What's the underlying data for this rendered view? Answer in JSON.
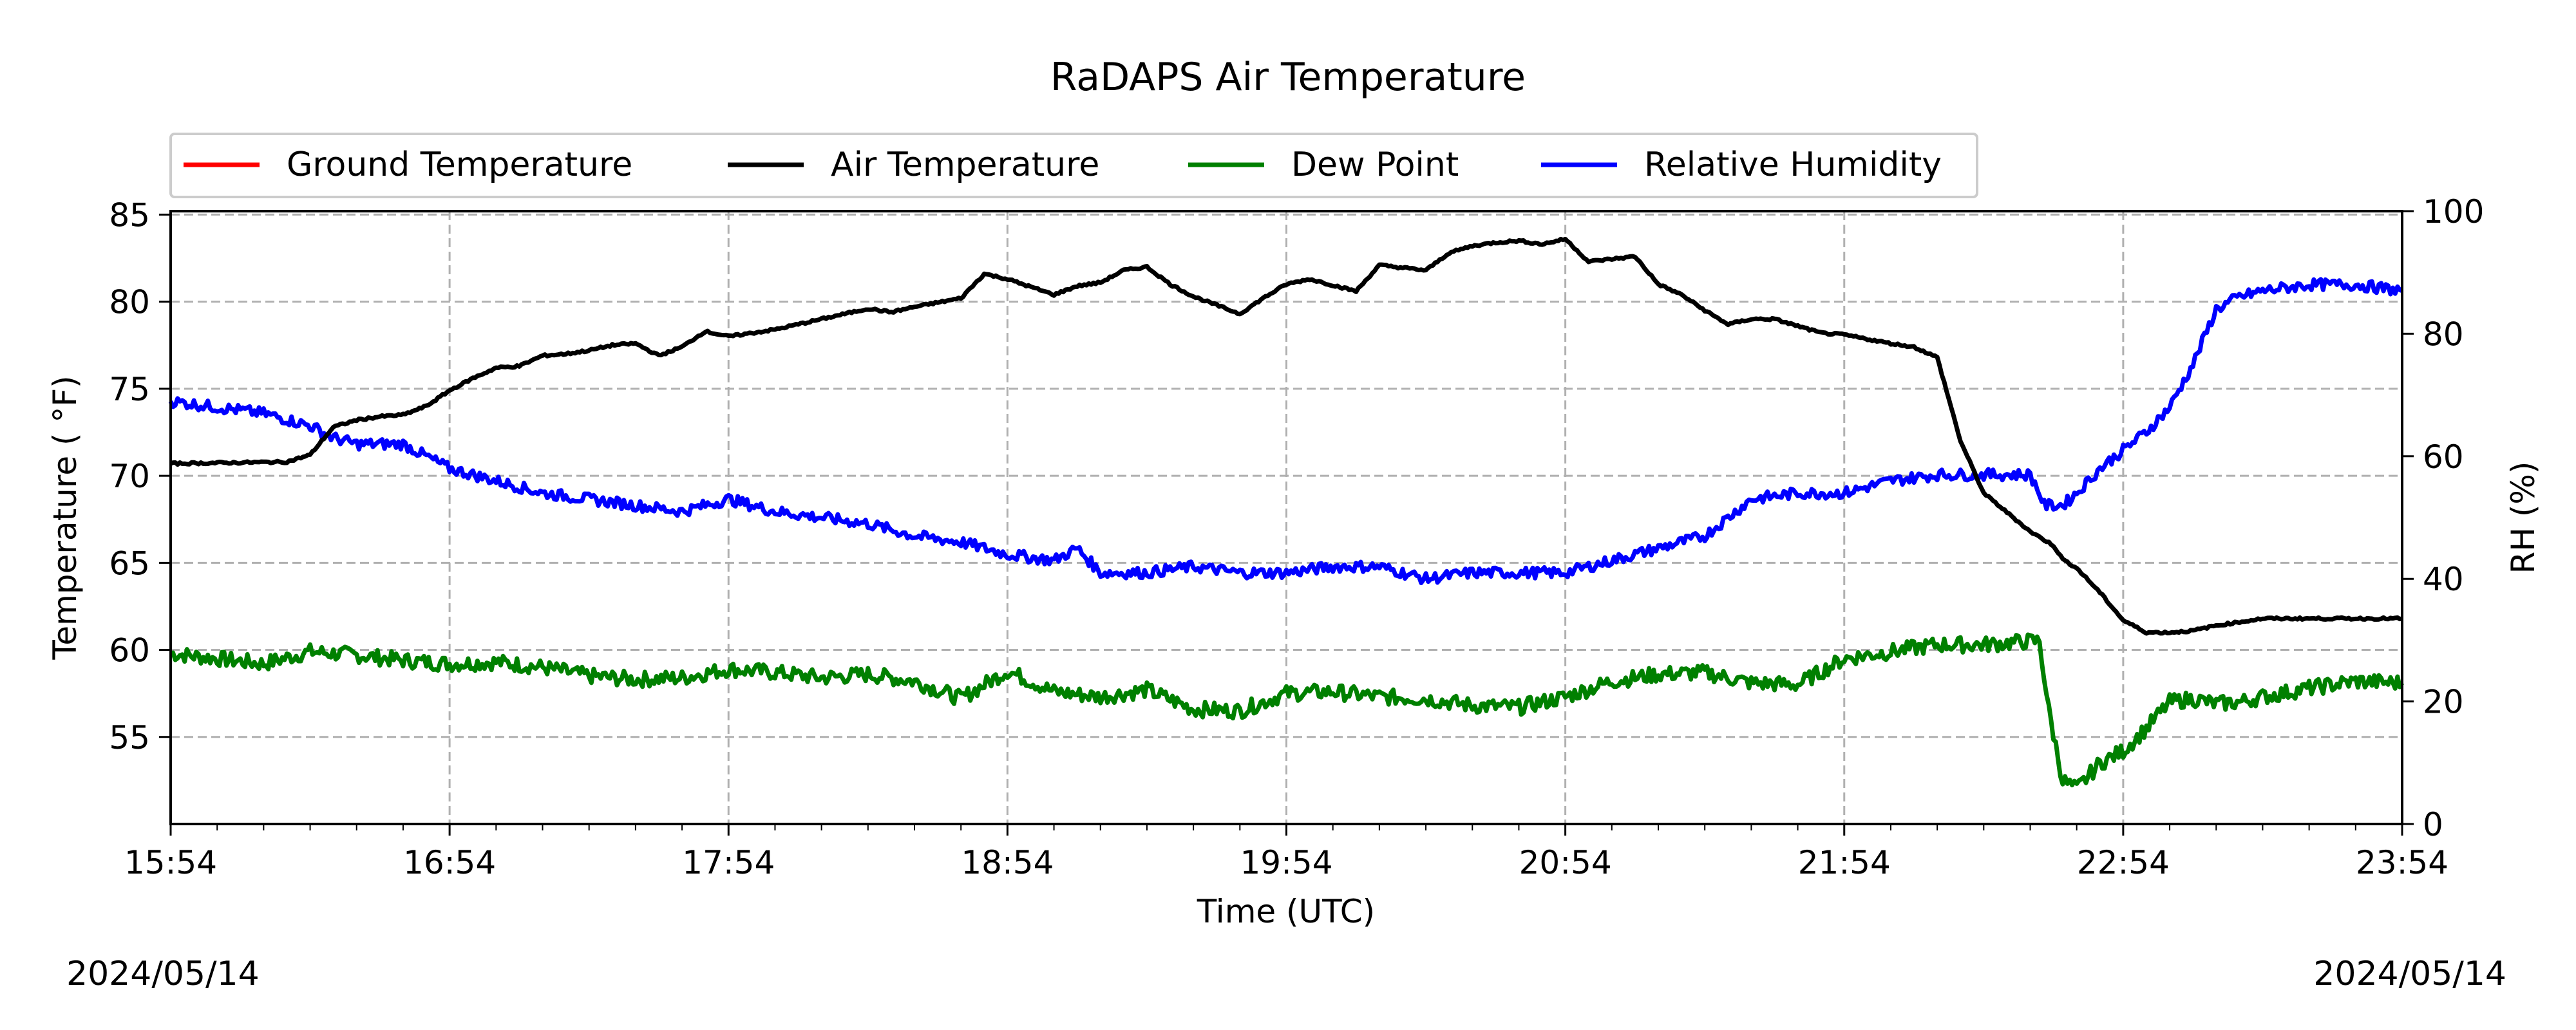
{
  "chart_data": {
    "type": "line",
    "title": "RaDAPS Air Temperature",
    "xlabel": "Time (UTC)",
    "ylabel_left": "Temperature ( $^\\circ$F)",
    "ylabel_right": "RH (%)",
    "date_left": "2024/05/14",
    "date_right": "2024/05/14",
    "x_ticks": [
      "15:54",
      "16:54",
      "17:54",
      "18:54",
      "19:54",
      "20:54",
      "21:54",
      "22:54",
      "23:54"
    ],
    "xlim": [
      "15:54",
      "23:54"
    ],
    "y_left_ticks": [
      55,
      60,
      65,
      70,
      75,
      80,
      85
    ],
    "y_left_lim": [
      50,
      85.2
    ],
    "y_right_ticks": [
      0,
      20,
      40,
      60,
      80,
      100
    ],
    "y_right_lim": [
      0,
      100
    ],
    "grid": true,
    "legend": {
      "placement": "top-left, above plot",
      "entries": [
        {
          "name": "Ground Temperature",
          "color": "#ff0000"
        },
        {
          "name": "Air Temperature",
          "color": "#000000"
        },
        {
          "name": "Dew Point",
          "color": "#008000"
        },
        {
          "name": "Relative Humidity",
          "color": "#0000ff"
        }
      ]
    },
    "series": [
      {
        "name": "Air Temperature",
        "axis": "left",
        "color": "#000000",
        "x": [
          "15:54",
          "16:19",
          "16:24",
          "16:29",
          "16:34",
          "16:39",
          "16:44",
          "16:49",
          "16:54",
          "16:59",
          "17:04",
          "17:09",
          "17:14",
          "17:19",
          "17:24",
          "17:29",
          "17:34",
          "17:39",
          "17:44",
          "17:49",
          "17:54",
          "18:04",
          "18:14",
          "18:24",
          "18:29",
          "18:34",
          "18:44",
          "18:49",
          "18:54",
          "19:04",
          "19:09",
          "19:14",
          "19:19",
          "19:24",
          "19:29",
          "19:34",
          "19:44",
          "19:49",
          "19:54",
          "19:59",
          "20:09",
          "20:14",
          "20:24",
          "20:29",
          "20:34",
          "20:39",
          "20:44",
          "20:49",
          "20:54",
          "20:59",
          "21:09",
          "21:14",
          "21:19",
          "21:24",
          "21:29",
          "21:34",
          "21:39",
          "21:44",
          "21:49",
          "21:54",
          "22:04",
          "22:09",
          "22:14",
          "22:19",
          "22:24",
          "22:34",
          "22:39",
          "22:41",
          "22:44",
          "22:49",
          "22:54",
          "22:59",
          "23:04",
          "23:09",
          "23:14",
          "23:19",
          "23:24",
          "23:34",
          "23:44",
          "23:54"
        ],
        "y": [
          70.7,
          70.8,
          71.2,
          72.8,
          73.2,
          73.4,
          73.5,
          74.0,
          74.9,
          75.6,
          76.2,
          76.3,
          76.9,
          77.0,
          77.2,
          77.5,
          77.6,
          76.9,
          77.4,
          78.3,
          78.0,
          78.4,
          79.0,
          79.6,
          79.4,
          79.7,
          80.2,
          81.6,
          81.3,
          80.4,
          80.9,
          81.1,
          81.8,
          82.0,
          81.0,
          80.3,
          79.3,
          80.2,
          81.0,
          81.3,
          80.6,
          82.1,
          81.8,
          82.8,
          83.2,
          83.4,
          83.5,
          83.3,
          83.6,
          82.3,
          82.6,
          81.0,
          80.4,
          79.5,
          78.7,
          79.0,
          79.0,
          78.6,
          78.2,
          78.1,
          77.6,
          77.4,
          76.8,
          72.0,
          69.0,
          66.8,
          66.0,
          65.2,
          64.7,
          63.3,
          61.7,
          61.0,
          61.0,
          61.1,
          61.4,
          61.6,
          61.8,
          61.8,
          61.8,
          61.8
        ]
      },
      {
        "name": "Dew Point",
        "axis": "left",
        "color": "#008000",
        "x": [
          "15:54",
          "16:04",
          "16:14",
          "16:24",
          "16:34",
          "16:44",
          "16:54",
          "17:04",
          "17:14",
          "17:24",
          "17:34",
          "17:44",
          "17:54",
          "18:04",
          "18:14",
          "18:24",
          "18:34",
          "18:44",
          "18:54",
          "19:04",
          "19:14",
          "19:24",
          "19:34",
          "19:44",
          "19:54",
          "20:04",
          "20:14",
          "20:24",
          "20:34",
          "20:44",
          "20:54",
          "21:04",
          "21:14",
          "21:24",
          "21:34",
          "21:44",
          "21:54",
          "22:04",
          "22:14",
          "22:24",
          "22:34",
          "22:36",
          "22:38",
          "22:41",
          "22:44",
          "22:49",
          "22:54",
          "22:59",
          "23:04",
          "23:09",
          "23:14",
          "23:19",
          "23:24",
          "23:34",
          "23:44",
          "23:54"
        ],
        "y": [
          59.8,
          59.5,
          59.2,
          59.9,
          59.7,
          59.4,
          59.2,
          59.3,
          59.0,
          58.5,
          58.3,
          58.4,
          58.9,
          58.7,
          58.4,
          58.6,
          58.2,
          57.2,
          58.8,
          57.6,
          57.3,
          57.7,
          56.6,
          56.5,
          57.5,
          57.6,
          57.3,
          57.2,
          56.8,
          56.7,
          57.3,
          58.2,
          58.6,
          58.7,
          58.1,
          58.0,
          59.5,
          59.9,
          60.3,
          60.3,
          60.5,
          60.5,
          56.5,
          52.5,
          52.0,
          53.5,
          54.2,
          55.5,
          57.0,
          57.2,
          56.9,
          57.0,
          57.3,
          57.8,
          58.2,
          58.1
        ]
      },
      {
        "name": "Relative Humidity",
        "axis": "right",
        "color": "#0000ff",
        "x": [
          "15:54",
          "16:04",
          "16:14",
          "16:24",
          "16:29",
          "16:34",
          "16:44",
          "16:54",
          "17:04",
          "17:14",
          "17:24",
          "17:34",
          "17:44",
          "17:54",
          "18:04",
          "18:14",
          "18:24",
          "18:34",
          "18:44",
          "18:54",
          "19:04",
          "19:09",
          "19:14",
          "19:24",
          "19:34",
          "19:44",
          "19:54",
          "20:04",
          "20:14",
          "20:24",
          "20:34",
          "20:44",
          "20:54",
          "21:04",
          "21:14",
          "21:24",
          "21:34",
          "21:44",
          "21:54",
          "22:04",
          "22:14",
          "22:24",
          "22:34",
          "22:36",
          "22:37",
          "22:41",
          "22:44",
          "22:49",
          "22:54",
          "22:59",
          "23:04",
          "23:09",
          "23:14",
          "23:19",
          "23:24",
          "23:34",
          "23:44",
          "23:54"
        ],
        "y": [
          69,
          68,
          67,
          65,
          63,
          62,
          62,
          58,
          56,
          54,
          53,
          52,
          51,
          53,
          51,
          50,
          49,
          47,
          46,
          44,
          43,
          45,
          41,
          41,
          42,
          41,
          41,
          42,
          42,
          40,
          41,
          41,
          41,
          43,
          45,
          47,
          53,
          54,
          54,
          56,
          57,
          57,
          57,
          54,
          52,
          52,
          54,
          58,
          61,
          64,
          68,
          75,
          84,
          86,
          87,
          88,
          88,
          87
        ]
      },
      {
        "name": "Ground Temperature",
        "axis": "left",
        "color": "#ff0000",
        "x": [],
        "y": []
      }
    ]
  }
}
